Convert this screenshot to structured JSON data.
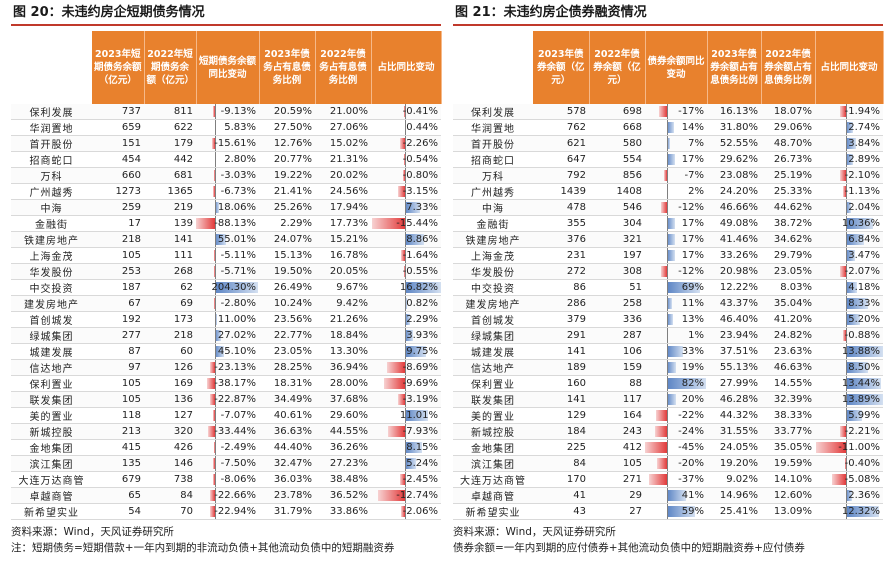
{
  "left": {
    "title": "图 20：未违约房企短期债务情况",
    "headers": [
      "",
      "2023年短期债务余额（亿元）",
      "2022年短期债务余额（亿元）",
      "短期债务余额同比变动",
      "2023年债务占有息债务比例",
      "2022年债务占有息债务比例",
      "占比同比变动"
    ],
    "rows": [
      [
        "保利发展",
        "737",
        "811",
        "-9.13%",
        "20.59%",
        "21.00%",
        "-0.41%"
      ],
      [
        "华润置地",
        "659",
        "622",
        "5.83%",
        "27.50%",
        "27.06%",
        "0.44%"
      ],
      [
        "首开股份",
        "151",
        "179",
        "-15.61%",
        "12.76%",
        "15.02%",
        "-2.26%"
      ],
      [
        "招商蛇口",
        "454",
        "442",
        "2.80%",
        "20.77%",
        "21.31%",
        "-0.54%"
      ],
      [
        "万科",
        "660",
        "681",
        "-3.03%",
        "19.22%",
        "20.02%",
        "-0.80%"
      ],
      [
        "广州越秀",
        "1273",
        "1365",
        "-6.73%",
        "21.41%",
        "24.56%",
        "-3.15%"
      ],
      [
        "中海",
        "259",
        "219",
        "18.06%",
        "25.26%",
        "17.94%",
        "7.33%"
      ],
      [
        "金融街",
        "17",
        "139",
        "-88.13%",
        "2.29%",
        "17.73%",
        "-15.44%"
      ],
      [
        "铁建房地产",
        "218",
        "141",
        "55.01%",
        "24.07%",
        "15.21%",
        "8.86%"
      ],
      [
        "上海金茂",
        "105",
        "111",
        "-5.11%",
        "15.13%",
        "16.78%",
        "-1.64%"
      ],
      [
        "华发股份",
        "253",
        "268",
        "-5.71%",
        "19.50%",
        "20.05%",
        "-0.55%"
      ],
      [
        "中交投资",
        "187",
        "62",
        "204.30%",
        "26.49%",
        "9.67%",
        "16.82%"
      ],
      [
        "建发房地产",
        "67",
        "69",
        "-2.80%",
        "10.24%",
        "9.42%",
        "0.82%"
      ],
      [
        "首创城发",
        "192",
        "173",
        "11.00%",
        "23.56%",
        "21.26%",
        "2.29%"
      ],
      [
        "绿城集团",
        "277",
        "218",
        "27.02%",
        "22.77%",
        "18.84%",
        "3.93%"
      ],
      [
        "城建发展",
        "87",
        "60",
        "45.10%",
        "23.05%",
        "13.30%",
        "9.75%"
      ],
      [
        "信达地产",
        "97",
        "126",
        "-23.13%",
        "28.25%",
        "36.94%",
        "-8.69%"
      ],
      [
        "保利置业",
        "105",
        "169",
        "-38.17%",
        "18.31%",
        "28.00%",
        "-9.69%"
      ],
      [
        "联发集团",
        "105",
        "136",
        "-22.87%",
        "34.49%",
        "37.68%",
        "-3.19%"
      ],
      [
        "美的置业",
        "118",
        "127",
        "-7.07%",
        "40.61%",
        "29.60%",
        "11.01%"
      ],
      [
        "新城控股",
        "213",
        "320",
        "-33.44%",
        "36.63%",
        "44.55%",
        "-7.93%"
      ],
      [
        "金地集团",
        "415",
        "426",
        "-2.49%",
        "44.40%",
        "36.26%",
        "8.15%"
      ],
      [
        "滨江集团",
        "135",
        "146",
        "-7.50%",
        "32.47%",
        "27.23%",
        "5.24%"
      ],
      [
        "大连万达商管",
        "679",
        "738",
        "-8.06%",
        "36.03%",
        "38.48%",
        "-2.45%"
      ],
      [
        "卓越商管",
        "65",
        "84",
        "-22.66%",
        "23.78%",
        "36.52%",
        "-12.74%"
      ],
      [
        "新希望实业",
        "54",
        "70",
        "-22.94%",
        "31.79%",
        "33.86%",
        "-2.06%"
      ]
    ],
    "source": "资料来源：Wind，天风证券研究所",
    "note": "注：短期债务=短期借款+一年内到期的非流动负债+其他流动负债中的短期融资券"
  },
  "right": {
    "title": "图 21：未违约房企债券融资情况",
    "headers": [
      "",
      "2023年债券余额（亿元）",
      "2022年债券余额（亿元）",
      "债券余额同比变动",
      "2023年债券余额占有息债务比例",
      "2022年债券余额占有息债务比例",
      "占比同比变动"
    ],
    "rows": [
      [
        "保利发展",
        "578",
        "698",
        "-17%",
        "16.13%",
        "18.07%",
        "-1.94%"
      ],
      [
        "华润置地",
        "762",
        "668",
        "14%",
        "31.80%",
        "29.06%",
        "2.74%"
      ],
      [
        "首开股份",
        "621",
        "580",
        "7%",
        "52.55%",
        "48.70%",
        "3.84%"
      ],
      [
        "招商蛇口",
        "647",
        "554",
        "17%",
        "29.62%",
        "26.73%",
        "2.89%"
      ],
      [
        "万科",
        "792",
        "856",
        "-7%",
        "23.08%",
        "25.19%",
        "-2.10%"
      ],
      [
        "广州越秀",
        "1439",
        "1408",
        "2%",
        "24.20%",
        "25.33%",
        "-1.13%"
      ],
      [
        "中海",
        "478",
        "546",
        "-12%",
        "46.66%",
        "44.62%",
        "2.04%"
      ],
      [
        "金融街",
        "355",
        "304",
        "17%",
        "49.08%",
        "38.72%",
        "10.36%"
      ],
      [
        "铁建房地产",
        "376",
        "321",
        "17%",
        "41.46%",
        "34.62%",
        "6.84%"
      ],
      [
        "上海金茂",
        "231",
        "197",
        "17%",
        "33.26%",
        "29.79%",
        "3.47%"
      ],
      [
        "华发股份",
        "272",
        "308",
        "-12%",
        "20.98%",
        "23.05%",
        "-2.07%"
      ],
      [
        "中交投资",
        "86",
        "51",
        "69%",
        "12.22%",
        "8.03%",
        "4.18%"
      ],
      [
        "建发房地产",
        "286",
        "258",
        "11%",
        "43.37%",
        "35.04%",
        "8.33%"
      ],
      [
        "首创城发",
        "379",
        "336",
        "13%",
        "46.40%",
        "41.20%",
        "5.20%"
      ],
      [
        "绿城集团",
        "291",
        "287",
        "1%",
        "23.94%",
        "24.82%",
        "-0.88%"
      ],
      [
        "城建发展",
        "141",
        "106",
        "33%",
        "37.51%",
        "23.63%",
        "13.88%"
      ],
      [
        "信达地产",
        "189",
        "159",
        "19%",
        "55.13%",
        "46.63%",
        "8.50%"
      ],
      [
        "保利置业",
        "160",
        "88",
        "82%",
        "27.99%",
        "14.55%",
        "13.44%"
      ],
      [
        "联发集团",
        "141",
        "117",
        "20%",
        "46.28%",
        "32.39%",
        "13.89%"
      ],
      [
        "美的置业",
        "129",
        "164",
        "-22%",
        "44.32%",
        "38.33%",
        "5.99%"
      ],
      [
        "新城控股",
        "184",
        "243",
        "-24%",
        "31.55%",
        "33.77%",
        "-2.21%"
      ],
      [
        "金地集团",
        "225",
        "412",
        "-45%",
        "24.05%",
        "35.05%",
        "-11.00%"
      ],
      [
        "滨江集团",
        "84",
        "105",
        "-20%",
        "19.20%",
        "19.59%",
        "-0.40%"
      ],
      [
        "大连万达商管",
        "170",
        "271",
        "-37%",
        "9.02%",
        "14.10%",
        "-5.08%"
      ],
      [
        "卓越商管",
        "41",
        "29",
        "41%",
        "14.96%",
        "12.60%",
        "2.36%"
      ],
      [
        "新希望实业",
        "43",
        "27",
        "59%",
        "25.41%",
        "13.09%",
        "12.32%"
      ]
    ],
    "source": "资料来源：Wind，天风证券研究所",
    "note": "债券余额=一年内到期的应付债券+其他流动负债中的短期融资券+应付债券"
  },
  "colors": {
    "header": "#e8812d",
    "positive_bar": "#5b84c4",
    "negative_bar": "#e23a3a",
    "title_rule": "#c0392b"
  }
}
